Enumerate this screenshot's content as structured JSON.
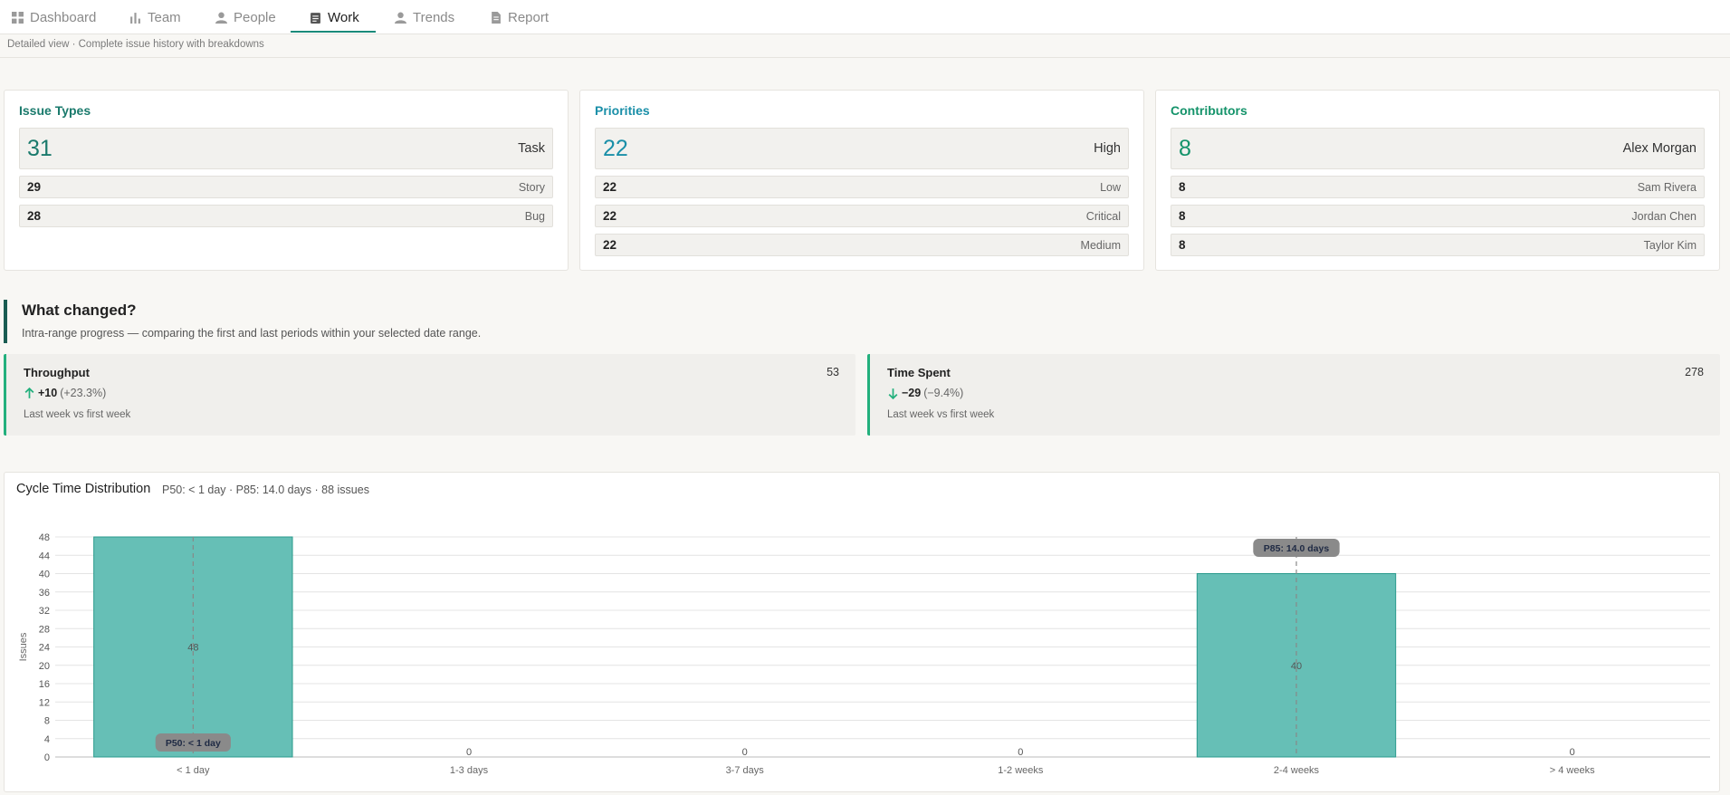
{
  "nav": {
    "tabs": [
      {
        "label": "Dashboard",
        "icon": "grid-icon"
      },
      {
        "label": "Team",
        "icon": "bar-chart-icon"
      },
      {
        "label": "People",
        "icon": "person-icon"
      },
      {
        "label": "Work",
        "icon": "clipboard-icon"
      },
      {
        "label": "Trends",
        "icon": "person-icon"
      },
      {
        "label": "Report",
        "icon": "document-icon"
      }
    ],
    "active_tab": "Work"
  },
  "subtitle": "Detailed view · Complete issue history with breakdowns",
  "breakdowns": [
    {
      "title": "Issue Types",
      "color": "#1a7a6c",
      "rows": [
        {
          "count": "31",
          "label": "Task"
        },
        {
          "count": "29",
          "label": "Story"
        },
        {
          "count": "28",
          "label": "Bug"
        }
      ]
    },
    {
      "title": "Priorities",
      "color": "#1a8fa8",
      "rows": [
        {
          "count": "22",
          "label": "High"
        },
        {
          "count": "22",
          "label": "Low"
        },
        {
          "count": "22",
          "label": "Critical"
        },
        {
          "count": "22",
          "label": "Medium"
        }
      ]
    },
    {
      "title": "Contributors",
      "color": "#14936a",
      "rows": [
        {
          "count": "8",
          "label": "Alex Morgan"
        },
        {
          "count": "8",
          "label": "Sam Rivera"
        },
        {
          "count": "8",
          "label": "Jordan Chen"
        },
        {
          "count": "8",
          "label": "Taylor Kim"
        }
      ]
    }
  ],
  "what_changed": {
    "title": "What changed?",
    "description": "Intra-range progress — comparing the first and last periods within your selected date range.",
    "metrics": [
      {
        "name": "Throughput",
        "value": "53",
        "delta": "+10",
        "pct": "(+23.3%)",
        "direction": "up",
        "note": "Last week vs first week"
      },
      {
        "name": "Time Spent",
        "value": "278",
        "delta": "−29",
        "pct": "(−9.4%)",
        "direction": "down",
        "note": "Last week vs first week"
      }
    ]
  },
  "chart_data": {
    "type": "bar",
    "title": "Cycle Time Distribution",
    "subtitle": "P50: < 1 day · P85: 14.0 days · 88 issues",
    "categories": [
      "< 1 day",
      "1-3 days",
      "3-7 days",
      "1-2 weeks",
      "2-4 weeks",
      "> 4 weeks"
    ],
    "values": [
      48,
      0,
      0,
      0,
      40,
      0
    ],
    "ylabel": "Issues",
    "xlabel": "",
    "ylim": [
      0,
      48
    ],
    "yticks": [
      0,
      4,
      8,
      12,
      16,
      20,
      24,
      28,
      32,
      36,
      40,
      44,
      48
    ],
    "grid": true,
    "bar_color": "#66bfb6",
    "bar_border": "#2a9a8c",
    "markers": [
      {
        "label": "P50: < 1 day",
        "category": "< 1 day"
      },
      {
        "label": "P85: 14.0 days",
        "category": "2-4 weeks"
      }
    ]
  }
}
